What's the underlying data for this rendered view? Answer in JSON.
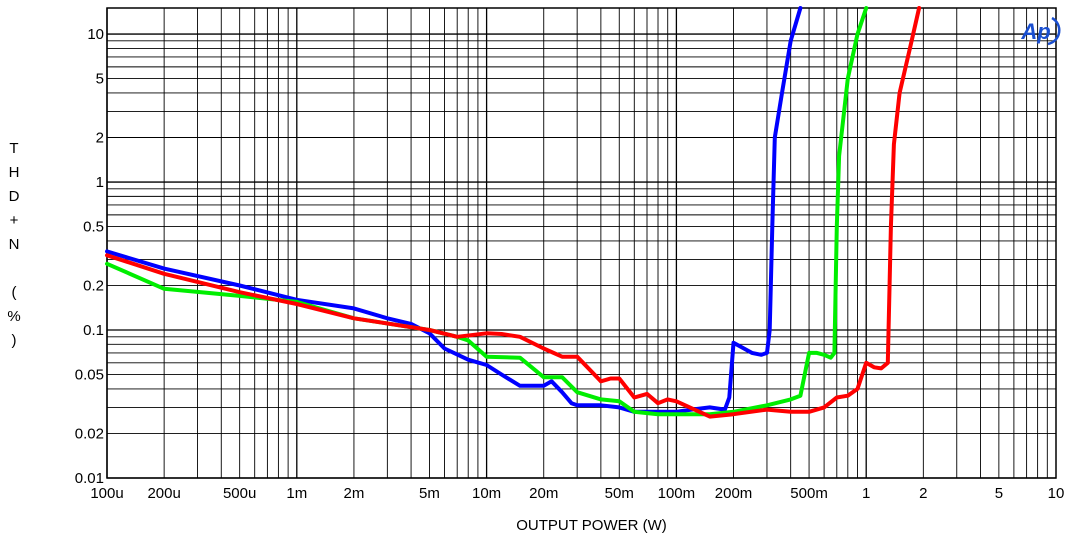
{
  "chart_data": {
    "type": "line",
    "title": "",
    "xlabel": "OUTPUT POWER (W)",
    "ylabel": "THD+N(%)",
    "x_scale": "log",
    "y_scale": "log",
    "xlim": [
      0.0001,
      10
    ],
    "ylim": [
      0.01,
      15
    ],
    "grid": true,
    "legend": "none",
    "logo": "Ap",
    "x_ticks": [
      {
        "value": 0.0001,
        "label": "100u"
      },
      {
        "value": 0.0002,
        "label": "200u"
      },
      {
        "value": 0.0005,
        "label": "500u"
      },
      {
        "value": 0.001,
        "label": "1m"
      },
      {
        "value": 0.002,
        "label": "2m"
      },
      {
        "value": 0.005,
        "label": "5m"
      },
      {
        "value": 0.01,
        "label": "10m"
      },
      {
        "value": 0.02,
        "label": "20m"
      },
      {
        "value": 0.05,
        "label": "50m"
      },
      {
        "value": 0.1,
        "label": "100m"
      },
      {
        "value": 0.2,
        "label": "200m"
      },
      {
        "value": 0.5,
        "label": "500m"
      },
      {
        "value": 1,
        "label": "1"
      },
      {
        "value": 2,
        "label": "2"
      },
      {
        "value": 5,
        "label": "5"
      },
      {
        "value": 10,
        "label": "10"
      }
    ],
    "y_ticks": [
      {
        "value": 0.01,
        "label": "0.01"
      },
      {
        "value": 0.02,
        "label": "0.02"
      },
      {
        "value": 0.05,
        "label": "0.05"
      },
      {
        "value": 0.1,
        "label": "0.1"
      },
      {
        "value": 0.2,
        "label": "0.2"
      },
      {
        "value": 0.5,
        "label": "0.5"
      },
      {
        "value": 1,
        "label": "1"
      },
      {
        "value": 2,
        "label": "2"
      },
      {
        "value": 5,
        "label": "5"
      },
      {
        "value": 10,
        "label": "10"
      }
    ],
    "series": [
      {
        "color": "#0000ff",
        "x": [
          0.0001,
          0.0002,
          0.0005,
          0.001,
          0.002,
          0.003,
          0.004,
          0.005,
          0.006,
          0.008,
          0.01,
          0.012,
          0.015,
          0.018,
          0.02,
          0.022,
          0.025,
          0.028,
          0.03,
          0.04,
          0.05,
          0.06,
          0.08,
          0.1,
          0.12,
          0.15,
          0.18,
          0.19,
          0.2,
          0.25,
          0.28,
          0.3,
          0.31,
          0.32,
          0.33,
          0.36,
          0.4,
          0.45
        ],
        "y": [
          0.34,
          0.26,
          0.2,
          0.16,
          0.14,
          0.12,
          0.11,
          0.095,
          0.075,
          0.063,
          0.058,
          0.05,
          0.042,
          0.042,
          0.042,
          0.045,
          0.038,
          0.032,
          0.031,
          0.031,
          0.03,
          0.028,
          0.028,
          0.028,
          0.029,
          0.03,
          0.029,
          0.035,
          0.082,
          0.07,
          0.068,
          0.07,
          0.1,
          0.5,
          2.0,
          4.0,
          9.0,
          15.0
        ]
      },
      {
        "color": "#00ee00",
        "x": [
          0.0001,
          0.0002,
          0.0005,
          0.001,
          0.002,
          0.005,
          0.007,
          0.008,
          0.01,
          0.015,
          0.02,
          0.025,
          0.03,
          0.04,
          0.05,
          0.06,
          0.08,
          0.1,
          0.15,
          0.2,
          0.3,
          0.4,
          0.45,
          0.5,
          0.55,
          0.6,
          0.65,
          0.68,
          0.7,
          0.72,
          0.8,
          0.9,
          1.0
        ],
        "y": [
          0.28,
          0.19,
          0.17,
          0.155,
          0.12,
          0.1,
          0.09,
          0.085,
          0.066,
          0.065,
          0.048,
          0.048,
          0.038,
          0.034,
          0.033,
          0.028,
          0.027,
          0.027,
          0.027,
          0.028,
          0.031,
          0.034,
          0.036,
          0.07,
          0.07,
          0.068,
          0.065,
          0.07,
          0.5,
          1.5,
          5.0,
          10.0,
          15.0
        ]
      },
      {
        "color": "#ff0000",
        "x": [
          0.0001,
          0.0002,
          0.0005,
          0.001,
          0.002,
          0.005,
          0.007,
          0.01,
          0.012,
          0.015,
          0.02,
          0.025,
          0.03,
          0.04,
          0.045,
          0.05,
          0.06,
          0.07,
          0.08,
          0.09,
          0.1,
          0.15,
          0.2,
          0.3,
          0.4,
          0.5,
          0.6,
          0.7,
          0.8,
          0.9,
          1.0,
          1.1,
          1.2,
          1.3,
          1.35,
          1.4,
          1.5,
          1.7,
          1.9
        ],
        "y": [
          0.32,
          0.24,
          0.18,
          0.15,
          0.12,
          0.1,
          0.09,
          0.095,
          0.094,
          0.09,
          0.075,
          0.066,
          0.066,
          0.045,
          0.047,
          0.047,
          0.035,
          0.037,
          0.032,
          0.034,
          0.033,
          0.026,
          0.027,
          0.029,
          0.028,
          0.028,
          0.03,
          0.035,
          0.036,
          0.04,
          0.06,
          0.056,
          0.055,
          0.06,
          0.5,
          1.8,
          4.0,
          8.0,
          15.0
        ]
      }
    ]
  }
}
